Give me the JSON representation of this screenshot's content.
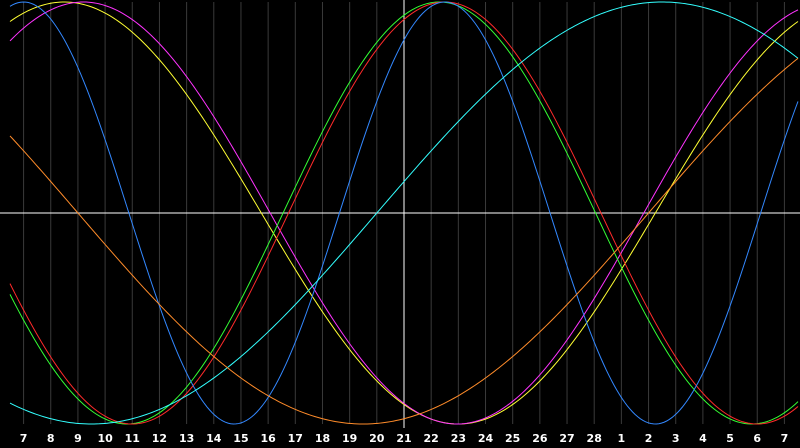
{
  "chart_data": {
    "type": "line",
    "x_tick_labels": [
      "7",
      "8",
      "9",
      "10",
      "11",
      "12",
      "13",
      "14",
      "15",
      "16",
      "17",
      "18",
      "19",
      "20",
      "21",
      "22",
      "23",
      "24",
      "25",
      "26",
      "27",
      "28",
      "1",
      "2",
      "3",
      "4",
      "5",
      "6",
      "7"
    ],
    "x_range": [
      0,
      29
    ],
    "y_range": [
      0,
      1
    ],
    "grid": true,
    "crosshair": {
      "x": 14.5,
      "y": 0.5
    },
    "colors": {
      "background": "#000000",
      "grid": "#3a3a3a",
      "crosshair": "#ffffff",
      "tick_label": "#ffffff"
    },
    "series": [
      {
        "color": "#ffff33",
        "period": 29.0,
        "peak": 2.0,
        "samples": 80
      },
      {
        "color": "#ff33ff",
        "period": 27.5,
        "peak": 2.7,
        "samples": 80
      },
      {
        "color": "#33ff33",
        "period": 23.0,
        "peak": 15.8,
        "samples": 80
      },
      {
        "color": "#ff2a2a",
        "period": 23.0,
        "peak": 16.0,
        "samples": 80
      },
      {
        "color": "#3388ff",
        "period": 15.5,
        "peak": 16.0,
        "samples": 80
      },
      {
        "color": "#33ffff",
        "period": 42.0,
        "peak": 24.0,
        "samples": 80
      },
      {
        "color": "#ff8c2a",
        "period": 42.0,
        "peak": 34.0,
        "samples": 80
      }
    ]
  }
}
